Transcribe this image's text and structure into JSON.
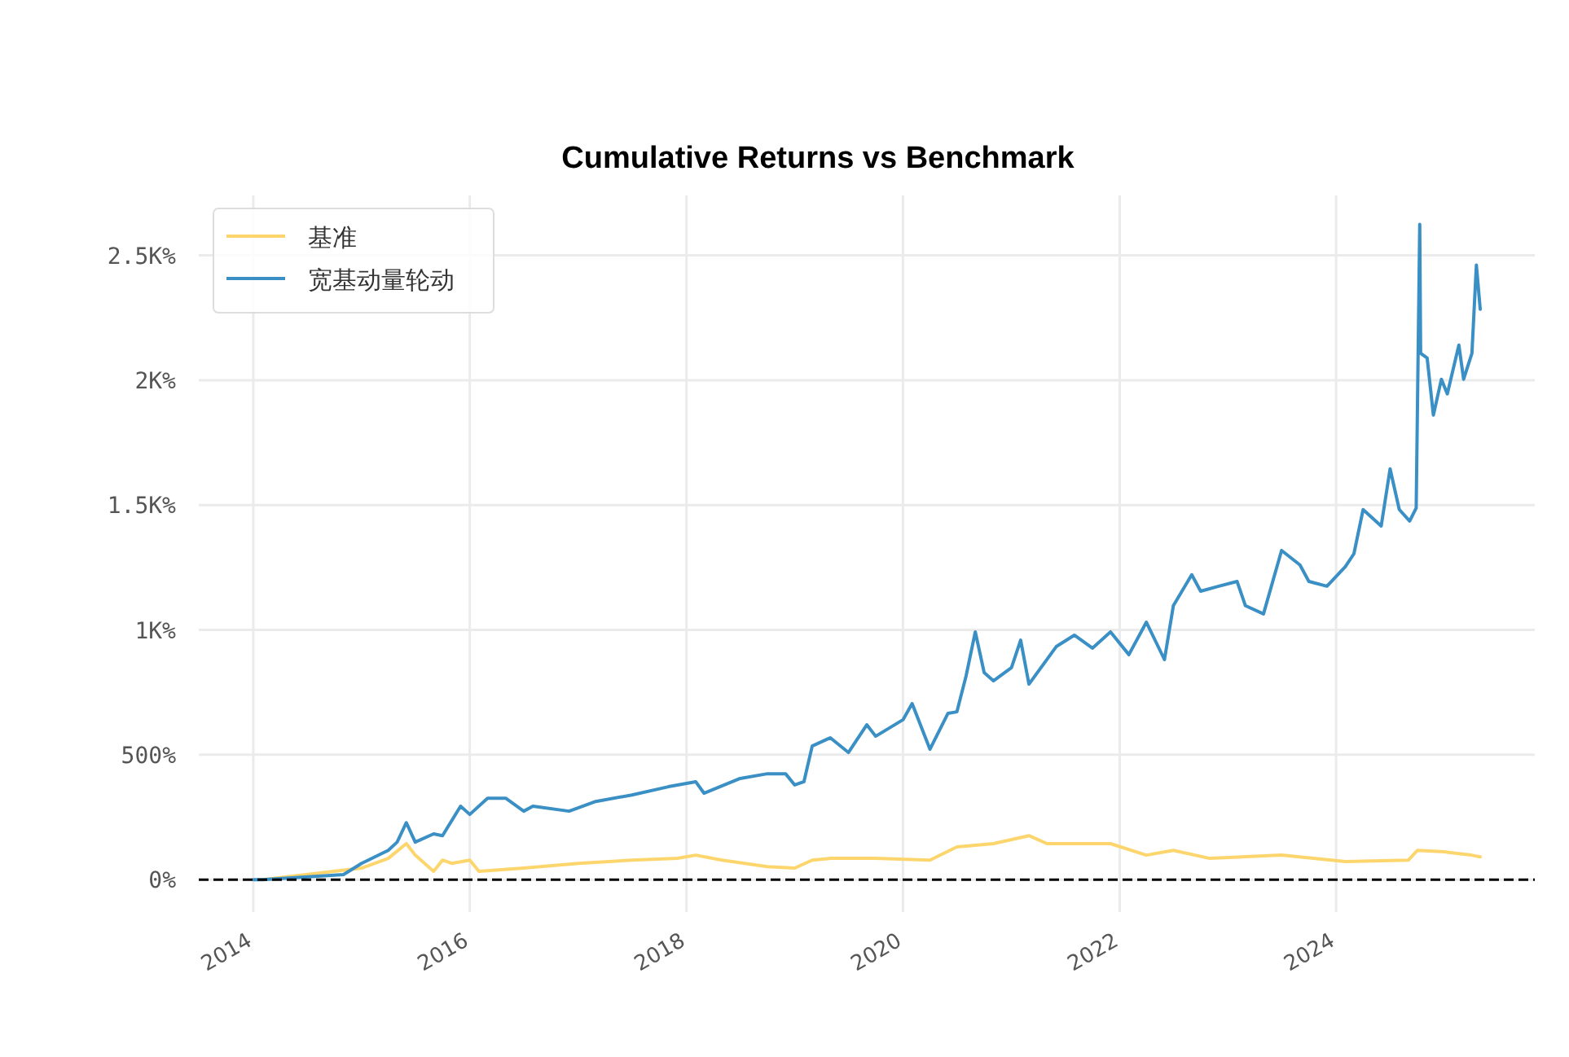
{
  "chart_data": {
    "type": "line",
    "title": "Cumulative Returns vs Benchmark",
    "xlim": [
      "2013-07",
      "2025-11"
    ],
    "xticks": [
      "2014",
      "2016",
      "2018",
      "2020",
      "2022",
      "2024"
    ],
    "ylim": [
      -130,
      2740
    ],
    "yticks": [
      {
        "value": 0,
        "label": "0%"
      },
      {
        "value": 500,
        "label": "500%"
      },
      {
        "value": 1000,
        "label": "1K%"
      },
      {
        "value": 1500,
        "label": "1.5K%"
      },
      {
        "value": 2000,
        "label": "2K%"
      },
      {
        "value": 2500,
        "label": "2.5K%"
      }
    ],
    "grid": true,
    "legend": "top left",
    "line_style": "solid",
    "marker": "none",
    "ref_lines": [
      {
        "axis": "y",
        "value": 0,
        "color": "#000000",
        "line_style": "dashed"
      }
    ],
    "series": [
      {
        "name": "基准",
        "color": "#fcd56d",
        "x": [
          "2014-02",
          "2015-01",
          "2015-04",
          "2015-06",
          "2015-07",
          "2015-09",
          "2015-10",
          "2015-11",
          "2016-01",
          "2016-02",
          "2016-07",
          "2017-01",
          "2017-07",
          "2017-12",
          "2018-02",
          "2018-05",
          "2018-10",
          "2019-01",
          "2019-03",
          "2019-05",
          "2019-10",
          "2020-04",
          "2020-07",
          "2020-11",
          "2021-03",
          "2021-05",
          "2021-12",
          "2022-04",
          "2022-07",
          "2022-11",
          "2023-07",
          "2024-02",
          "2024-09",
          "2024-10",
          "2025-01",
          "2025-04",
          "2025-05"
        ],
        "values": [
          0,
          46,
          85,
          144,
          98,
          33,
          78,
          65,
          78,
          33,
          46,
          65,
          78,
          85,
          98,
          78,
          52,
          46,
          78,
          85,
          85,
          78,
          131,
          144,
          176,
          144,
          144,
          98,
          117,
          85,
          98,
          72,
          78,
          117,
          111,
          98,
          91
        ]
      },
      {
        "name": "宽基动量轮动",
        "color": "#3a8fc5",
        "x": [
          "2014-01",
          "2014-02",
          "2014-11",
          "2015-01",
          "2015-04",
          "2015-05",
          "2015-06",
          "2015-07",
          "2015-09",
          "2015-10",
          "2015-12",
          "2016-01",
          "2016-03",
          "2016-05",
          "2016-07",
          "2016-08",
          "2016-12",
          "2017-03",
          "2017-07",
          "2017-11",
          "2018-02",
          "2018-03",
          "2018-07",
          "2018-10",
          "2018-12",
          "2019-01",
          "2019-02",
          "2019-03",
          "2019-05",
          "2019-07",
          "2019-09",
          "2019-10",
          "2020-01",
          "2020-02",
          "2020-04",
          "2020-06",
          "2020-07",
          "2020-08",
          "2020-09",
          "2020-10",
          "2020-11",
          "2021-01",
          "2021-02",
          "2021-03",
          "2021-06",
          "2021-08",
          "2021-10",
          "2021-12",
          "2022-02",
          "2022-04",
          "2022-06",
          "2022-07",
          "2022-09",
          "2022-10",
          "2022-12",
          "2023-02",
          "2023-03",
          "2023-05",
          "2023-07",
          "2023-09",
          "2023-10",
          "2023-12",
          "2024-02",
          "2024-03",
          "2024-04",
          "2024-06",
          "2024-07",
          "2024-08",
          "2024-09-05",
          "2024-09-27",
          "2024-10-09",
          "2024-10-12",
          "2024-11-03",
          "2024-11-24",
          "2024-12-21",
          "2025-01-10",
          "2025-02-18",
          "2025-03-06",
          "2025-04-03",
          "2025-04-18",
          "2025-05-01"
        ],
        "values": [
          0,
          0,
          20,
          65,
          117,
          150,
          228,
          150,
          183,
          176,
          294,
          261,
          326,
          326,
          274,
          294,
          274,
          313,
          339,
          372,
          392,
          346,
          405,
          424,
          424,
          379,
          392,
          535,
          568,
          509,
          620,
          574,
          640,
          705,
          522,
          666,
          672,
          816,
          992,
          829,
          796,
          849,
          959,
          783,
          933,
          979,
          927,
          992,
          901,
          1031,
          881,
          1097,
          1221,
          1155,
          1175,
          1194,
          1097,
          1064,
          1318,
          1260,
          1194,
          1175,
          1253,
          1305,
          1482,
          1416,
          1645,
          1482,
          1436,
          1488,
          2624,
          2108,
          2089,
          1860,
          2004,
          1945,
          2141,
          2004,
          2108,
          2461,
          2284
        ]
      }
    ]
  }
}
